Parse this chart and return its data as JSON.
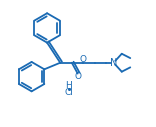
{
  "bg_color": "#ffffff",
  "line_color": "#1a6ab3",
  "text_color": "#1a6ab3",
  "line_width": 1.3,
  "figsize": [
    1.56,
    1.27
  ],
  "dpi": 100,
  "xlim": [
    0.0,
    10.0
  ],
  "ylim": [
    0.5,
    8.5
  ]
}
